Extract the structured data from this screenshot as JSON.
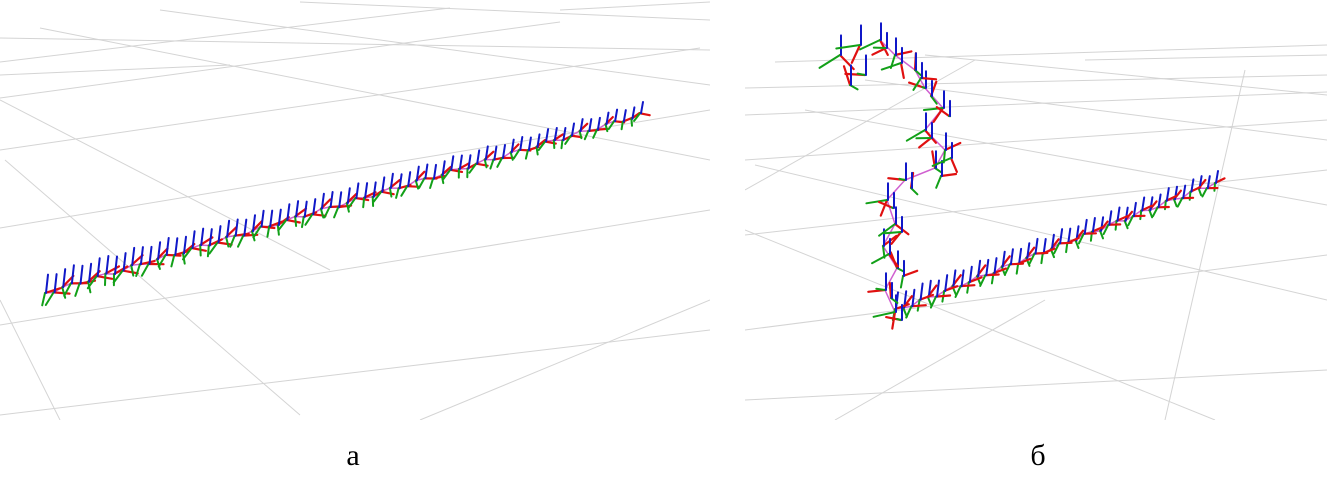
{
  "panels": [
    {
      "label": "а"
    },
    {
      "label": "б"
    }
  ],
  "colors": {
    "grid": "#d4d4d4",
    "axis_x": "#e01010",
    "axis_y": "#12a018",
    "axis_z": "#1018c8",
    "path": "#d060d0"
  }
}
